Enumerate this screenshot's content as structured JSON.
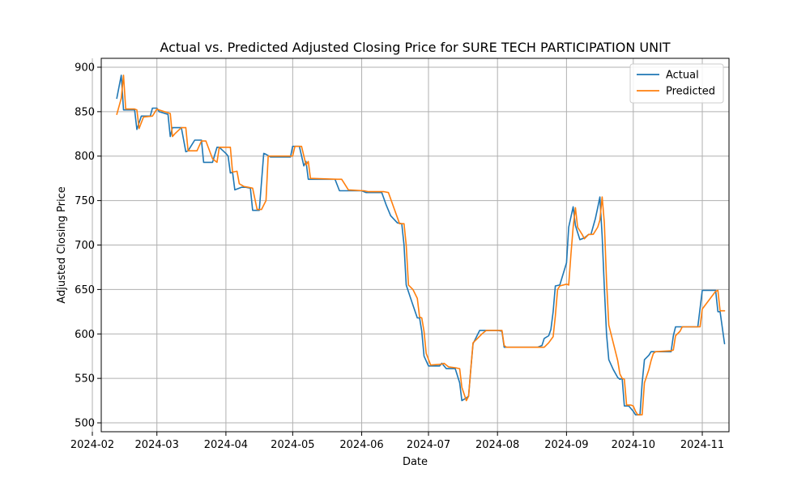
{
  "chart_data": {
    "type": "line",
    "title": "Actual vs. Predicted Adjusted Closing Price for SURE TECH PARTICIPATION UNIT",
    "xlabel": "Date",
    "ylabel": "Adjusted Closing Price",
    "xlim": [
      "2024-02-05",
      "2024-11-13"
    ],
    "ylim": [
      490,
      910
    ],
    "x_ticks": [
      "2024-02",
      "2024-03",
      "2024-04",
      "2024-05",
      "2024-06",
      "2024-07",
      "2024-08",
      "2024-09",
      "2024-10",
      "2024-11"
    ],
    "y_ticks": [
      500,
      550,
      600,
      650,
      700,
      750,
      800,
      850,
      900
    ],
    "grid": true,
    "legend_position": "top-right",
    "colors": {
      "actual": "#1f77b4",
      "predicted": "#ff7f0e",
      "grid": "#b0b0b0"
    },
    "series": [
      {
        "name": "Actual",
        "points": [
          [
            "2024-02-12",
            865
          ],
          [
            "2024-02-14",
            891
          ],
          [
            "2024-02-15",
            852
          ],
          [
            "2024-02-16",
            852
          ],
          [
            "2024-02-20",
            852
          ],
          [
            "2024-02-21",
            830
          ],
          [
            "2024-02-23",
            845
          ],
          [
            "2024-02-27",
            845
          ],
          [
            "2024-02-28",
            854
          ],
          [
            "2024-03-01",
            854
          ],
          [
            "2024-03-02",
            850
          ],
          [
            "2024-03-06",
            847
          ],
          [
            "2024-03-07",
            822
          ],
          [
            "2024-03-08",
            832
          ],
          [
            "2024-03-12",
            832
          ],
          [
            "2024-03-14",
            805
          ],
          [
            "2024-03-15",
            806
          ],
          [
            "2024-03-18",
            818
          ],
          [
            "2024-03-21",
            818
          ],
          [
            "2024-03-22",
            793
          ],
          [
            "2024-03-26",
            793
          ],
          [
            "2024-03-28",
            810
          ],
          [
            "2024-03-29",
            810
          ],
          [
            "2024-04-01",
            803
          ],
          [
            "2024-04-02",
            800
          ],
          [
            "2024-04-03",
            781
          ],
          [
            "2024-04-04",
            782
          ],
          [
            "2024-04-05",
            762
          ],
          [
            "2024-04-08",
            765
          ],
          [
            "2024-04-10",
            765
          ],
          [
            "2024-04-12",
            764
          ],
          [
            "2024-04-13",
            739
          ],
          [
            "2024-04-16",
            739
          ],
          [
            "2024-04-18",
            803
          ],
          [
            "2024-04-19",
            802
          ],
          [
            "2024-04-21",
            799
          ],
          [
            "2024-04-30",
            799
          ],
          [
            "2024-05-01",
            811
          ],
          [
            "2024-05-04",
            811
          ],
          [
            "2024-05-06",
            789
          ],
          [
            "2024-05-07",
            794
          ],
          [
            "2024-05-08",
            774
          ],
          [
            "2024-05-10",
            774
          ],
          [
            "2024-05-20",
            774
          ],
          [
            "2024-05-22",
            761
          ],
          [
            "2024-05-24",
            761
          ],
          [
            "2024-06-01",
            761
          ],
          [
            "2024-06-03",
            759
          ],
          [
            "2024-06-10",
            759
          ],
          [
            "2024-06-12",
            745
          ],
          [
            "2024-06-14",
            733
          ],
          [
            "2024-06-17",
            725
          ],
          [
            "2024-06-19",
            724
          ],
          [
            "2024-06-20",
            700
          ],
          [
            "2024-06-21",
            655
          ],
          [
            "2024-06-23",
            640
          ],
          [
            "2024-06-26",
            618
          ],
          [
            "2024-06-27",
            618
          ],
          [
            "2024-06-28",
            603
          ],
          [
            "2024-06-29",
            575
          ],
          [
            "2024-07-01",
            564
          ],
          [
            "2024-07-06",
            564
          ],
          [
            "2024-07-07",
            567
          ],
          [
            "2024-07-09",
            561
          ],
          [
            "2024-07-13",
            561
          ],
          [
            "2024-07-15",
            545
          ],
          [
            "2024-07-16",
            525
          ],
          [
            "2024-07-18",
            528
          ],
          [
            "2024-07-19",
            530
          ],
          [
            "2024-07-20",
            560
          ],
          [
            "2024-07-21",
            589
          ],
          [
            "2024-07-24",
            604
          ],
          [
            "2024-07-26",
            604
          ],
          [
            "2024-08-01",
            604
          ],
          [
            "2024-08-03",
            603
          ],
          [
            "2024-08-04",
            585
          ],
          [
            "2024-08-19",
            585
          ],
          [
            "2024-08-21",
            587
          ],
          [
            "2024-08-22",
            595
          ],
          [
            "2024-08-24",
            598
          ],
          [
            "2024-08-25",
            605
          ],
          [
            "2024-08-26",
            625
          ],
          [
            "2024-08-27",
            654
          ],
          [
            "2024-08-29",
            655
          ],
          [
            "2024-09-01",
            680
          ],
          [
            "2024-09-02",
            720
          ],
          [
            "2024-09-04",
            743
          ],
          [
            "2024-09-05",
            722
          ],
          [
            "2024-09-07",
            706
          ],
          [
            "2024-09-09",
            708
          ],
          [
            "2024-09-11",
            712
          ],
          [
            "2024-09-12",
            712
          ],
          [
            "2024-09-14",
            730
          ],
          [
            "2024-09-15",
            742
          ],
          [
            "2024-09-16",
            754
          ],
          [
            "2024-09-17",
            710
          ],
          [
            "2024-09-18",
            652
          ],
          [
            "2024-09-19",
            600
          ],
          [
            "2024-09-20",
            571
          ],
          [
            "2024-09-22",
            560
          ],
          [
            "2024-09-24",
            551
          ],
          [
            "2024-09-25",
            549
          ],
          [
            "2024-09-26",
            550
          ],
          [
            "2024-09-27",
            519
          ],
          [
            "2024-09-29",
            519
          ],
          [
            "2024-10-01",
            513
          ],
          [
            "2024-10-02",
            509
          ],
          [
            "2024-10-04",
            509
          ],
          [
            "2024-10-05",
            545
          ],
          [
            "2024-10-06",
            571
          ],
          [
            "2024-10-08",
            576
          ],
          [
            "2024-10-09",
            580
          ],
          [
            "2024-10-10",
            580
          ],
          [
            "2024-10-18",
            580
          ],
          [
            "2024-10-19",
            598
          ],
          [
            "2024-10-20",
            608
          ],
          [
            "2024-10-22",
            608
          ],
          [
            "2024-10-30",
            608
          ],
          [
            "2024-11-01",
            649
          ],
          [
            "2024-11-07",
            649
          ],
          [
            "2024-11-08",
            625
          ],
          [
            "2024-11-09",
            625
          ],
          [
            "2024-11-11",
            589
          ]
        ]
      },
      {
        "name": "Predicted",
        "points": [
          [
            "2024-02-12",
            847
          ],
          [
            "2024-02-14",
            865
          ],
          [
            "2024-02-15",
            891
          ],
          [
            "2024-02-16",
            853
          ],
          [
            "2024-02-20",
            853
          ],
          [
            "2024-02-21",
            852
          ],
          [
            "2024-02-22",
            831
          ],
          [
            "2024-02-24",
            844
          ],
          [
            "2024-02-28",
            845
          ],
          [
            "2024-03-01",
            853
          ],
          [
            "2024-03-02",
            852
          ],
          [
            "2024-03-07",
            848
          ],
          [
            "2024-03-08",
            822
          ],
          [
            "2024-03-09",
            825
          ],
          [
            "2024-03-12",
            832
          ],
          [
            "2024-03-14",
            832
          ],
          [
            "2024-03-15",
            806
          ],
          [
            "2024-03-19",
            806
          ],
          [
            "2024-03-21",
            817
          ],
          [
            "2024-03-23",
            817
          ],
          [
            "2024-03-26",
            797
          ],
          [
            "2024-03-28",
            793
          ],
          [
            "2024-03-29",
            810
          ],
          [
            "2024-04-01",
            810
          ],
          [
            "2024-04-03",
            810
          ],
          [
            "2024-04-04",
            782
          ],
          [
            "2024-04-06",
            783
          ],
          [
            "2024-04-07",
            769
          ],
          [
            "2024-04-09",
            766
          ],
          [
            "2024-04-11",
            765
          ],
          [
            "2024-04-13",
            764
          ],
          [
            "2024-04-15",
            740
          ],
          [
            "2024-04-17",
            740
          ],
          [
            "2024-04-19",
            750
          ],
          [
            "2024-04-20",
            800
          ],
          [
            "2024-04-21",
            800
          ],
          [
            "2024-05-01",
            800
          ],
          [
            "2024-05-02",
            811
          ],
          [
            "2024-05-05",
            811
          ],
          [
            "2024-05-07",
            790
          ],
          [
            "2024-05-08",
            794
          ],
          [
            "2024-05-09",
            775
          ],
          [
            "2024-05-21",
            774
          ],
          [
            "2024-05-23",
            774
          ],
          [
            "2024-05-24",
            770
          ],
          [
            "2024-05-26",
            762
          ],
          [
            "2024-06-02",
            761
          ],
          [
            "2024-06-04",
            760
          ],
          [
            "2024-06-11",
            760
          ],
          [
            "2024-06-13",
            759
          ],
          [
            "2024-06-18",
            724
          ],
          [
            "2024-06-20",
            724
          ],
          [
            "2024-06-21",
            700
          ],
          [
            "2024-06-22",
            655
          ],
          [
            "2024-06-24",
            650
          ],
          [
            "2024-06-26",
            640
          ],
          [
            "2024-06-27",
            619
          ],
          [
            "2024-06-28",
            618
          ],
          [
            "2024-06-29",
            603
          ],
          [
            "2024-06-30",
            578
          ],
          [
            "2024-07-02",
            565
          ],
          [
            "2024-07-07",
            566
          ],
          [
            "2024-07-08",
            567
          ],
          [
            "2024-07-10",
            563
          ],
          [
            "2024-07-13",
            562
          ],
          [
            "2024-07-15",
            561
          ],
          [
            "2024-07-16",
            540
          ],
          [
            "2024-07-18",
            525
          ],
          [
            "2024-07-19",
            530
          ],
          [
            "2024-07-20",
            560
          ],
          [
            "2024-07-21",
            590
          ],
          [
            "2024-07-23",
            595
          ],
          [
            "2024-07-25",
            600
          ],
          [
            "2024-07-27",
            604
          ],
          [
            "2024-08-02",
            604
          ],
          [
            "2024-08-03",
            604
          ],
          [
            "2024-08-04",
            587
          ],
          [
            "2024-08-05",
            585
          ],
          [
            "2024-08-20",
            585
          ],
          [
            "2024-08-22",
            585
          ],
          [
            "2024-08-24",
            590
          ],
          [
            "2024-08-26",
            597
          ],
          [
            "2024-08-27",
            620
          ],
          [
            "2024-08-28",
            650
          ],
          [
            "2024-08-29",
            654
          ],
          [
            "2024-09-01",
            656
          ],
          [
            "2024-09-02",
            655
          ],
          [
            "2024-09-03",
            690
          ],
          [
            "2024-09-04",
            720
          ],
          [
            "2024-09-05",
            742
          ],
          [
            "2024-09-06",
            720
          ],
          [
            "2024-09-08",
            712
          ],
          [
            "2024-09-09",
            707
          ],
          [
            "2024-09-11",
            712
          ],
          [
            "2024-09-13",
            712
          ],
          [
            "2024-09-15",
            720
          ],
          [
            "2024-09-16",
            728
          ],
          [
            "2024-09-17",
            754
          ],
          [
            "2024-09-18",
            725
          ],
          [
            "2024-09-19",
            660
          ],
          [
            "2024-09-20",
            610
          ],
          [
            "2024-09-22",
            590
          ],
          [
            "2024-09-24",
            570
          ],
          [
            "2024-09-25",
            555
          ],
          [
            "2024-09-26",
            550
          ],
          [
            "2024-09-27",
            549
          ],
          [
            "2024-09-28",
            520
          ],
          [
            "2024-09-30",
            520
          ],
          [
            "2024-10-01",
            519
          ],
          [
            "2024-10-02",
            513
          ],
          [
            "2024-10-03",
            509
          ],
          [
            "2024-10-05",
            509
          ],
          [
            "2024-10-06",
            545
          ],
          [
            "2024-10-08",
            560
          ],
          [
            "2024-10-09",
            570
          ],
          [
            "2024-10-10",
            578
          ],
          [
            "2024-10-11",
            580
          ],
          [
            "2024-10-18",
            581
          ],
          [
            "2024-10-19",
            582
          ],
          [
            "2024-10-20",
            598
          ],
          [
            "2024-10-22",
            603
          ],
          [
            "2024-10-23",
            608
          ],
          [
            "2024-10-31",
            608
          ],
          [
            "2024-11-01",
            628
          ],
          [
            "2024-11-07",
            648
          ],
          [
            "2024-11-08",
            649
          ],
          [
            "2024-11-09",
            626
          ],
          [
            "2024-11-11",
            626
          ]
        ]
      }
    ]
  }
}
